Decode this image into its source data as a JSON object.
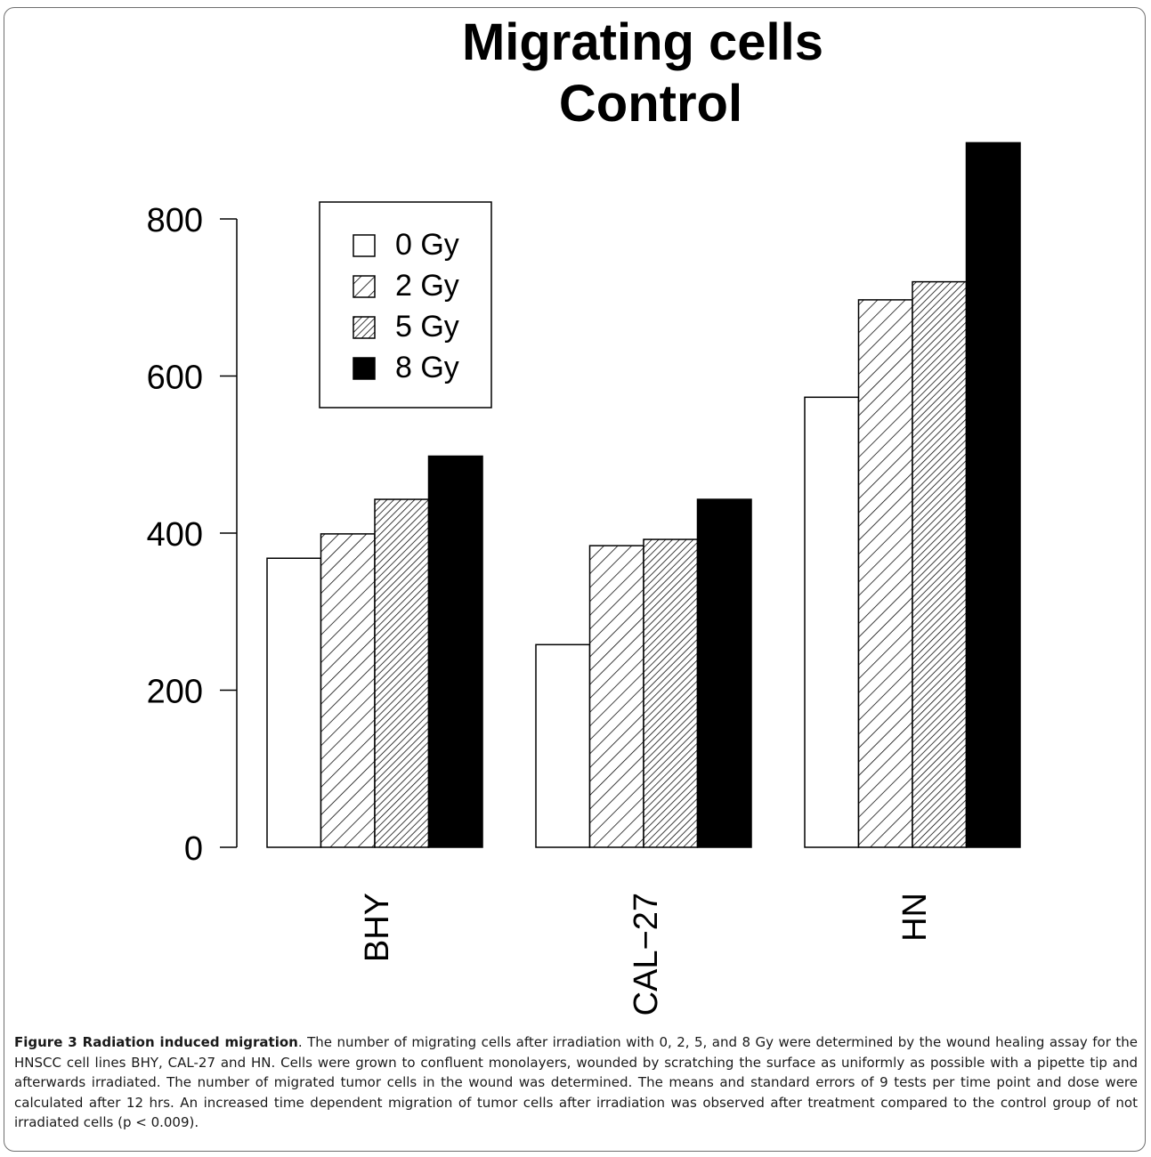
{
  "chart_data": {
    "type": "bar",
    "title": "Migrating cells",
    "subtitle": "Control",
    "categories": [
      "BHY",
      "CAL−27",
      "HN"
    ],
    "series": [
      {
        "name": "0 Gy",
        "values": [
          368,
          258,
          573
        ],
        "pattern": "empty"
      },
      {
        "name": "2 Gy",
        "values": [
          399,
          384,
          697
        ],
        "pattern": "hatch-sparse"
      },
      {
        "name": "5 Gy",
        "values": [
          443,
          392,
          720
        ],
        "pattern": "hatch-dense"
      },
      {
        "name": "8 Gy",
        "values": [
          498,
          443,
          897
        ],
        "pattern": "solid"
      }
    ],
    "ylim": [
      0,
      800
    ],
    "yticks": [
      0,
      200,
      400,
      600,
      800
    ],
    "xlabel": "",
    "ylabel": "",
    "legend_position": "top-left",
    "grid": false,
    "colors": {
      "bar_fill": "#000000",
      "bar_stroke": "#000000",
      "background": "#ffffff"
    }
  },
  "caption": {
    "label": "Figure 3 Radiation induced migration",
    "text": ". The number of migrating cells after irradiation with 0, 2, 5, and 8 Gy were determined by the wound healing assay for the HNSCC cell lines BHY, CAL-27 and HN. Cells were grown to confluent monolayers, wounded by scratching the surface as uniformly as possible with a pipette tip and afterwards irradiated. The number of migrated tumor cells in the wound was determined. The means and standard errors of 9 tests per time point and dose were calculated after 12 hrs. An increased time dependent migration of tumor cells after irradiation was observed after treatment compared to the control group of not irradiated cells (p < 0.009)."
  }
}
